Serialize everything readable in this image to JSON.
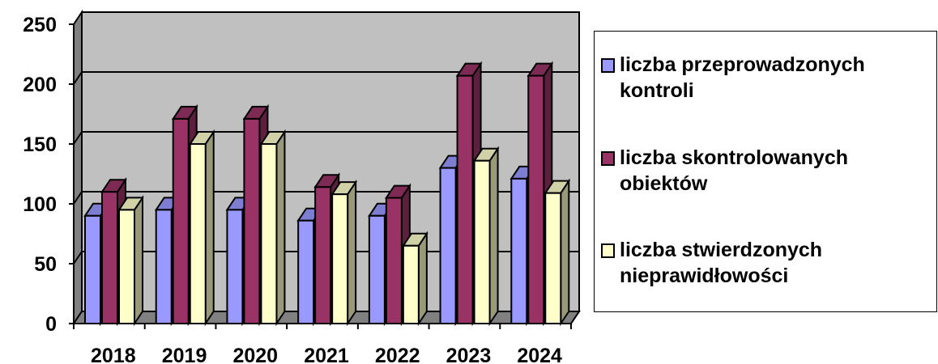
{
  "chart_data": {
    "type": "bar",
    "title": "",
    "xlabel": "",
    "ylabel": "",
    "categories": [
      "2018",
      "2019",
      "2020",
      "2021",
      "2022",
      "2023",
      "2024"
    ],
    "ylim": [
      0,
      250
    ],
    "yticks": [
      "0",
      "50",
      "100",
      "150",
      "200",
      "250"
    ],
    "grid": true,
    "legend_position": "right",
    "series": [
      {
        "name": "liczba przeprowadzonych kontroli",
        "color": "#9999ff",
        "values": [
          90,
          95,
          95,
          86,
          90,
          130,
          121
        ]
      },
      {
        "name": "liczba skontrolowanych obiektów",
        "color": "#993366",
        "values": [
          110,
          171,
          171,
          114,
          105,
          207,
          207
        ]
      },
      {
        "name": "liczba stwierdzonych nieprawidłowości",
        "color": "#ffffcc",
        "values": [
          95,
          150,
          150,
          108,
          65,
          136,
          109
        ]
      }
    ]
  }
}
